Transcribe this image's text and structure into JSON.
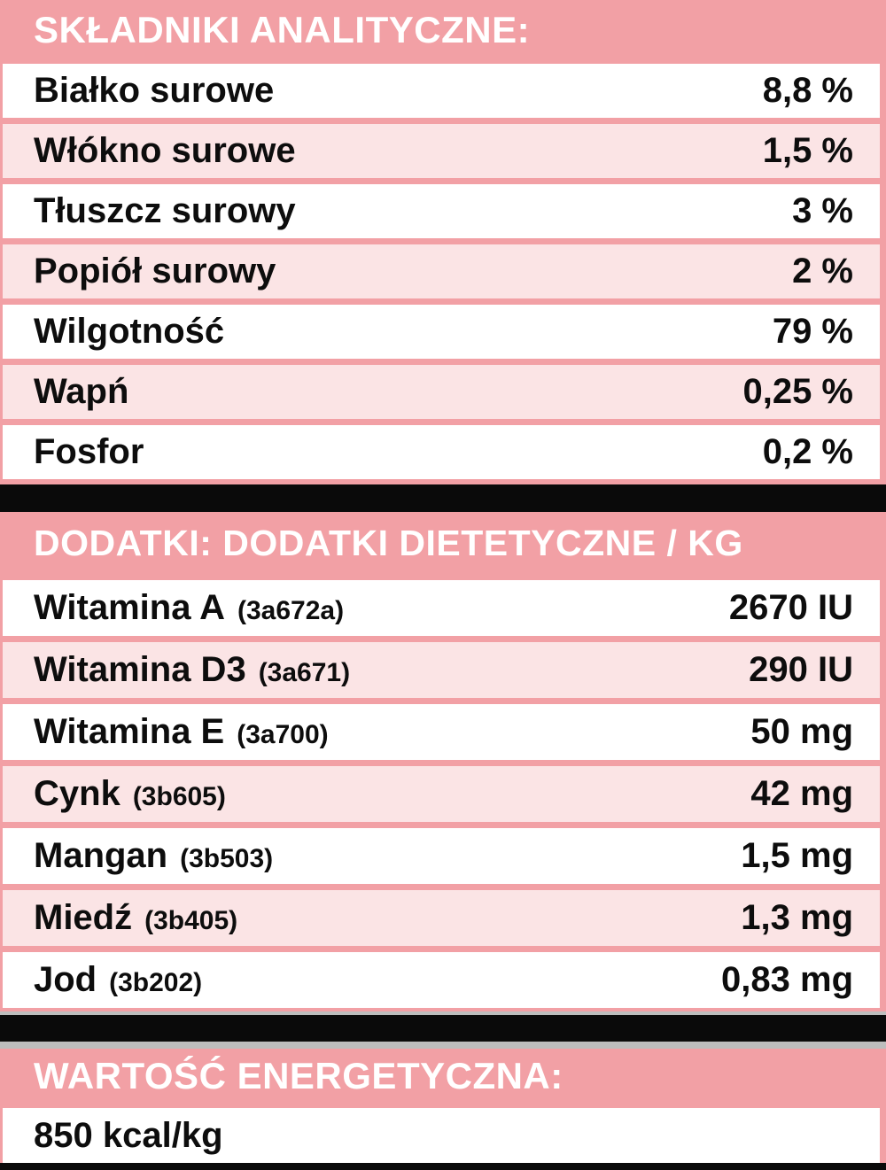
{
  "colors": {
    "salmon_background": "#F2A0A5",
    "row_pink": "#FBE4E5",
    "row_white": "#FFFFFF",
    "band_black": "#0A0A0A",
    "band_grey": "#BDBDBD",
    "text_dark": "#0D0D0D",
    "header_text": "#FFFFFF"
  },
  "sections": {
    "analytical": {
      "title": "SKŁADNIKI ANALITYCZNE:",
      "rows": [
        {
          "label": "Białko surowe",
          "value": "8,8 %"
        },
        {
          "label": "Włókno surowe",
          "value": "1,5 %"
        },
        {
          "label": "Tłuszcz surowy",
          "value": "3 %"
        },
        {
          "label": "Popiół surowy",
          "value": "2 %"
        },
        {
          "label": "Wilgotność",
          "value": "79 %"
        },
        {
          "label": "Wapń",
          "value": "0,25 %"
        },
        {
          "label": "Fosfor",
          "value": "0,2 %"
        }
      ]
    },
    "additives": {
      "title": "DODATKI: DODATKI DIETETYCZNE / KG",
      "rows": [
        {
          "label": "Witamina A",
          "code": "(3a672a)",
          "value": "2670 IU"
        },
        {
          "label": "Witamina D3",
          "code": "(3a671)",
          "value": "290 IU"
        },
        {
          "label": "Witamina E",
          "code": "(3a700)",
          "value": "50 mg"
        },
        {
          "label": "Cynk",
          "code": "(3b605)",
          "value": "42 mg"
        },
        {
          "label": "Mangan",
          "code": "(3b503)",
          "value": "1,5 mg"
        },
        {
          "label": "Miedź",
          "code": "(3b405)",
          "value": "1,3 mg"
        },
        {
          "label": "Jod",
          "code": "(3b202)",
          "value": "0,83 mg"
        }
      ]
    },
    "energy": {
      "title": "WARTOŚĆ ENERGETYCZNA:",
      "value": "850 kcal/kg"
    }
  }
}
